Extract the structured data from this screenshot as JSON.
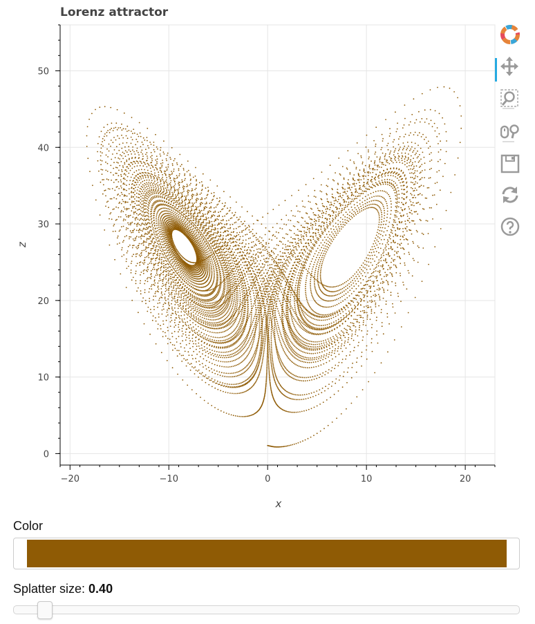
{
  "chart_data": {
    "type": "scatter",
    "title": "Lorenz attractor",
    "xlabel": "x",
    "ylabel": "z",
    "xlim": [
      -21,
      23
    ],
    "ylim": [
      -1.5,
      56
    ],
    "xticks": [
      -20,
      -10,
      0,
      10,
      20
    ],
    "yticks": [
      0,
      10,
      20,
      30,
      40,
      50
    ],
    "grid": true,
    "marker_color": "#8f5b05",
    "series": [
      {
        "generator": "lorenz",
        "parameters": {
          "sigma": 10,
          "rho": 28,
          "beta": 2.6667
        },
        "initial": [
          0.0,
          1.0,
          1.05
        ],
        "dt": 0.006,
        "points": 10000
      }
    ]
  },
  "toolbar": {
    "items": [
      "bokeh-logo-icon",
      "pan-icon",
      "box-zoom-icon",
      "wheel-zoom-icon",
      "save-icon",
      "reset-icon",
      "help-icon"
    ],
    "active": "pan-icon",
    "accent": "#26aae1"
  },
  "controls": {
    "color_label": "Color",
    "color_value": "#8f5b05",
    "splatter_label": "Splatter size: ",
    "splatter_value": "0.40",
    "splatter_fraction": 0.04
  }
}
